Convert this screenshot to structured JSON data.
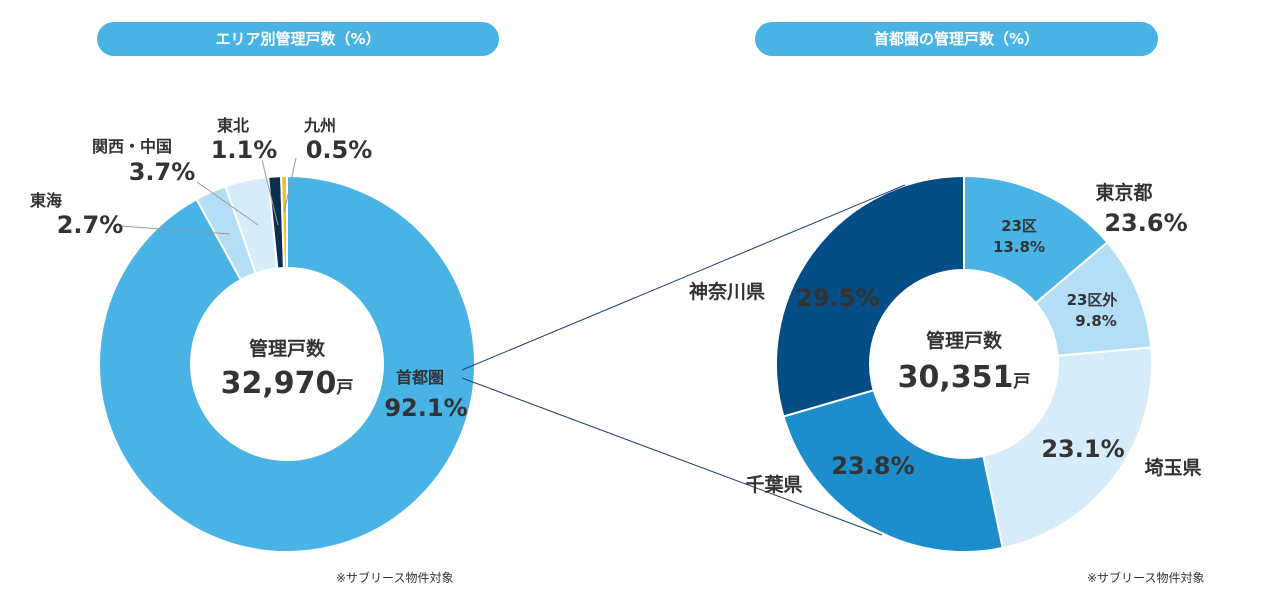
{
  "chart_data": [
    {
      "type": "pie",
      "title": "エリア別管理戸数（%）",
      "center_label": "管理戸数",
      "center_value": "32,970",
      "center_unit": "戸",
      "note": "※サブリース物件対象",
      "slices": [
        {
          "name": "首都圏",
          "value": 92.1,
          "label": "92.1%",
          "color": "#4ab3e6"
        },
        {
          "name": "東海",
          "value": 2.7,
          "label": "2.7%",
          "color": "#b3def5"
        },
        {
          "name": "関西・中国",
          "value": 3.7,
          "label": "3.7%",
          "color": "#d6ecf9"
        },
        {
          "name": "東北",
          "value": 1.1,
          "label": "1.1%",
          "color": "#0d2f4f"
        },
        {
          "name": "九州",
          "value": 0.5,
          "label": "0.5%",
          "color": "#f2c12e"
        }
      ]
    },
    {
      "type": "pie",
      "title": "首都圏の管理戸数（%）",
      "center_label": "管理戸数",
      "center_value": "30,351",
      "center_unit": "戸",
      "note": "※サブリース物件対象",
      "group_label": {
        "name": "東京都",
        "value": "23.6%"
      },
      "slices": [
        {
          "name": "23区",
          "value": 13.8,
          "label": "13.8%",
          "color": "#4ab3e6"
        },
        {
          "name": "23区外",
          "value": 9.8,
          "label": "9.8%",
          "color": "#b3def5"
        },
        {
          "name": "埼玉県",
          "value": 23.1,
          "label": "23.1%",
          "color": "#d6ecf9"
        },
        {
          "name": "千葉県",
          "value": 23.8,
          "label": "23.8%",
          "color": "#1b8ecb"
        },
        {
          "name": "神奈川県",
          "value": 29.5,
          "label": "29.5%",
          "color": "#054d85"
        }
      ]
    }
  ]
}
